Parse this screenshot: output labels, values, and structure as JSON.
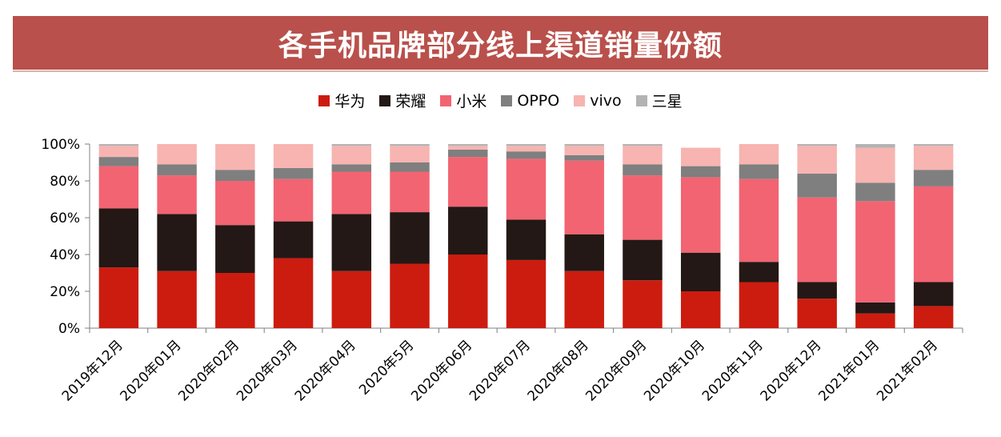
{
  "title": "各手机品牌部分线上渠道销量份额",
  "chart_data": {
    "type": "bar",
    "stacked": true,
    "ylim": [
      0,
      100
    ],
    "yticks": [
      "0%",
      "20%",
      "40%",
      "60%",
      "80%",
      "100%"
    ],
    "legend_position": "top",
    "categories": [
      "2019年12月",
      "2020年01月",
      "2020年02月",
      "2020年03月",
      "2020年04月",
      "2020年5月",
      "2020年06月",
      "2020年07月",
      "2020年08月",
      "2020年09月",
      "2020年10月",
      "2020年11月",
      "2020年12月",
      "2021年01月",
      "2021年02月"
    ],
    "series": [
      {
        "name": "华为",
        "color": "#cc1c10",
        "values": [
          33,
          31,
          30,
          38,
          31,
          35,
          40,
          37,
          31,
          26,
          20,
          25,
          16,
          8,
          12
        ]
      },
      {
        "name": "荣耀",
        "color": "#231815",
        "values": [
          32,
          31,
          26,
          20,
          31,
          28,
          26,
          22,
          20,
          22,
          21,
          11,
          9,
          6,
          13
        ]
      },
      {
        "name": "小米",
        "color": "#f26472",
        "values": [
          23,
          21,
          24,
          23,
          23,
          22,
          27,
          33,
          40,
          35,
          41,
          45,
          46,
          55,
          52
        ]
      },
      {
        "name": "OPPO",
        "color": "#7f7f7f",
        "values": [
          5,
          6,
          6,
          6,
          4,
          5,
          4,
          4,
          3,
          6,
          6,
          8,
          13,
          10,
          9
        ]
      },
      {
        "name": "vivo",
        "color": "#f7b4b1",
        "values": [
          6,
          11,
          14,
          13,
          10,
          9,
          2,
          3,
          5,
          10,
          10,
          11,
          15,
          19,
          13
        ]
      },
      {
        "name": "三星",
        "color": "#b3b3b3",
        "values": [
          1,
          0,
          0,
          0,
          1,
          1,
          1,
          1,
          1,
          1,
          0,
          0,
          1,
          2,
          1
        ]
      }
    ]
  }
}
